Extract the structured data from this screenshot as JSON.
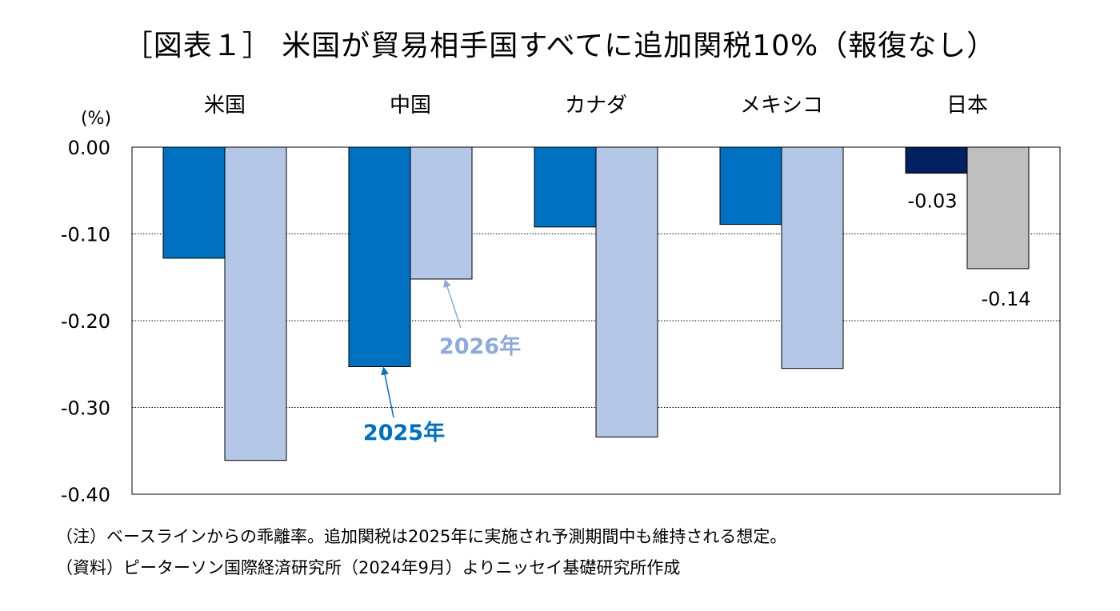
{
  "chart_data": {
    "type": "bar",
    "title": "［図表１］ 米国が貿易相手国すべてに追加関税10%（報復なし）",
    "ylabel": "(%)",
    "ylim": [
      -0.4,
      0.0
    ],
    "yticks": [
      0.0,
      -0.1,
      -0.2,
      -0.3,
      -0.4
    ],
    "ytick_labels": [
      "0.00",
      "-0.10",
      "-0.20",
      "-0.30",
      "-0.40"
    ],
    "grid": true,
    "category_axis": "top",
    "categories": [
      "米国",
      "中国",
      "カナダ",
      "メキシコ",
      "日本"
    ],
    "series": [
      {
        "name": "2025年",
        "values": [
          -0.128,
          -0.253,
          -0.092,
          -0.089,
          -0.03
        ],
        "color": "#0070c0",
        "japan_color": "#002060"
      },
      {
        "name": "2026年",
        "values": [
          -0.361,
          -0.152,
          -0.334,
          -0.255,
          -0.14
        ],
        "color": "#b4c7e7",
        "japan_color": "#bfbfbf"
      }
    ],
    "data_labels": {
      "japan_2025": "-0.03",
      "japan_2026": "-0.14"
    },
    "annotations": {
      "series_2025": {
        "text": "2025年",
        "color": "#0070c0"
      },
      "series_2026": {
        "text": "2026年",
        "color": "#8eaadb"
      }
    }
  },
  "notes": {
    "note_1": "（注）ベースラインからの乖離率。追加関税は2025年に実施され予測期間中も維持される想定。",
    "note_2": "（資料）ピーターソン国際経済研究所（2024年9月）よりニッセイ基礎研究所作成"
  }
}
